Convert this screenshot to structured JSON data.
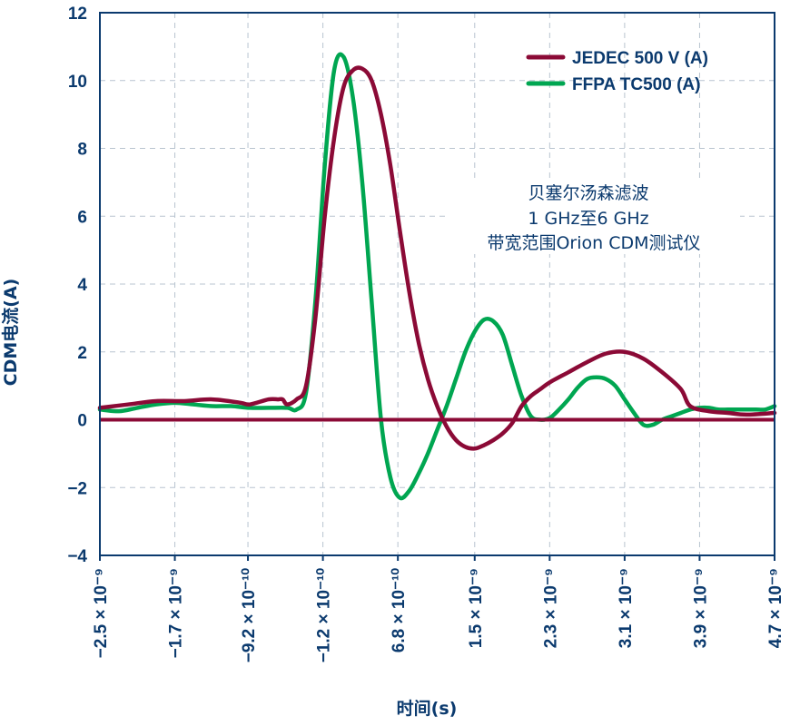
{
  "chart_data": {
    "type": "line",
    "xlabel": "时间(s)",
    "ylabel": "CDM电流(A)",
    "ylim": [
      -4,
      12
    ],
    "yticks": [
      "−4",
      "−2",
      "0",
      "2",
      "4",
      "6",
      "8",
      "10",
      "12"
    ],
    "yticks_values": [
      -4,
      -2,
      0,
      2,
      4,
      6,
      8,
      10,
      12
    ],
    "xlim": [
      -2.5e-09,
      4.7e-09
    ],
    "xticks": [
      "−2.5 × 10⁻⁹",
      "−1.7 × 10⁻⁹",
      "−9.2 × 10⁻¹⁰",
      "−1.2 × 10⁻¹⁰",
      "6.8 × 10⁻¹⁰",
      "1.5 × 10⁻⁹",
      "2.3 × 10⁻⁹",
      "3.1 × 10⁻⁹",
      "3.9 × 10⁻⁹",
      "4.7 × 10⁻⁹"
    ],
    "xticks_values": [
      -2.5e-09,
      -1.7e-09,
      -9.2e-10,
      -1.2e-10,
      6.8e-10,
      1.5e-09,
      2.3e-09,
      3.1e-09,
      3.9e-09,
      4.7e-09
    ],
    "grid": true,
    "legend_position": "top-right",
    "annotation": [
      "贝塞尔汤森滤波",
      "1 GHz至6 GHz",
      "带宽范围Orion CDM测试仪"
    ],
    "series": [
      {
        "name": "JEDEC 500 V (A)",
        "color": "#8b0a36",
        "x": [
          -2.5e-09,
          -2.2e-09,
          -1.9e-09,
          -1.6e-09,
          -1.3e-09,
          -1e-09,
          -9e-10,
          -7e-10,
          -6e-10,
          -5.5e-10,
          -5e-10,
          -4e-10,
          -3e-10,
          -2e-10,
          -1e-10,
          0.0,
          1e-10,
          2e-10,
          3e-10,
          4e-10,
          5e-10,
          6e-10,
          7e-10,
          8e-10,
          9e-10,
          1e-09,
          1.1e-09,
          1.2e-09,
          1.3e-09,
          1.4e-09,
          1.5e-09,
          1.6e-09,
          1.7e-09,
          1.8e-09,
          1.9e-09,
          2e-09,
          2.1e-09,
          2.2e-09,
          2.3e-09,
          2.5e-09,
          2.7e-09,
          2.9e-09,
          3.1e-09,
          3.3e-09,
          3.5e-09,
          3.7e-09,
          3.8e-09,
          4e-09,
          4.2e-09,
          4.4e-09,
          4.7e-09
        ],
        "y": [
          0.35,
          0.45,
          0.55,
          0.55,
          0.6,
          0.5,
          0.45,
          0.6,
          0.6,
          0.6,
          0.45,
          0.6,
          1.0,
          3.0,
          6.0,
          8.3,
          9.8,
          10.3,
          10.35,
          10.0,
          9.0,
          7.5,
          5.6,
          3.8,
          2.3,
          1.2,
          0.4,
          -0.2,
          -0.6,
          -0.8,
          -0.85,
          -0.75,
          -0.6,
          -0.4,
          -0.1,
          0.4,
          0.7,
          0.9,
          1.1,
          1.4,
          1.7,
          1.95,
          2.0,
          1.8,
          1.4,
          0.9,
          0.4,
          0.25,
          0.2,
          0.15,
          0.2
        ]
      },
      {
        "name": "FFPA TC500 (A)",
        "color": "#00a651",
        "x": [
          -2.5e-09,
          -2.3e-09,
          -2.1e-09,
          -1.9e-09,
          -1.7e-09,
          -1.5e-09,
          -1.3e-09,
          -1.1e-09,
          -9e-10,
          -7e-10,
          -5e-10,
          -4e-10,
          -3e-10,
          -2e-10,
          -1e-10,
          0.0,
          1e-10,
          2e-10,
          3e-10,
          4e-10,
          5e-10,
          6e-10,
          7e-10,
          8e-10,
          9e-10,
          1e-09,
          1.1e-09,
          1.2e-09,
          1.3e-09,
          1.4e-09,
          1.5e-09,
          1.6e-09,
          1.7e-09,
          1.8e-09,
          1.9e-09,
          2e-09,
          2.1e-09,
          2.2e-09,
          2.3e-09,
          2.4e-09,
          2.5e-09,
          2.6e-09,
          2.7e-09,
          2.8e-09,
          2.9e-09,
          3e-09,
          3.1e-09,
          3.2e-09,
          3.3e-09,
          3.4e-09,
          3.5e-09,
          3.6e-09,
          3.7e-09,
          3.8e-09,
          3.9e-09,
          4e-09,
          4.1e-09,
          4.2e-09,
          4.3e-09,
          4.4e-09,
          4.5e-09,
          4.6e-09,
          4.7e-09
        ],
        "y": [
          0.3,
          0.25,
          0.35,
          0.45,
          0.5,
          0.45,
          0.4,
          0.4,
          0.35,
          0.35,
          0.35,
          0.3,
          0.8,
          3.5,
          7.5,
          10.3,
          10.7,
          9.5,
          7.0,
          3.5,
          0.0,
          -1.7,
          -2.3,
          -2.1,
          -1.6,
          -1.0,
          -0.3,
          0.4,
          1.2,
          2.0,
          2.6,
          2.95,
          2.9,
          2.5,
          1.6,
          0.7,
          0.1,
          0.0,
          0.05,
          0.3,
          0.6,
          0.95,
          1.2,
          1.25,
          1.2,
          1.0,
          0.6,
          0.2,
          -0.15,
          -0.15,
          0.0,
          0.1,
          0.2,
          0.3,
          0.35,
          0.35,
          0.3,
          0.3,
          0.3,
          0.3,
          0.3,
          0.3,
          0.4
        ]
      }
    ]
  }
}
